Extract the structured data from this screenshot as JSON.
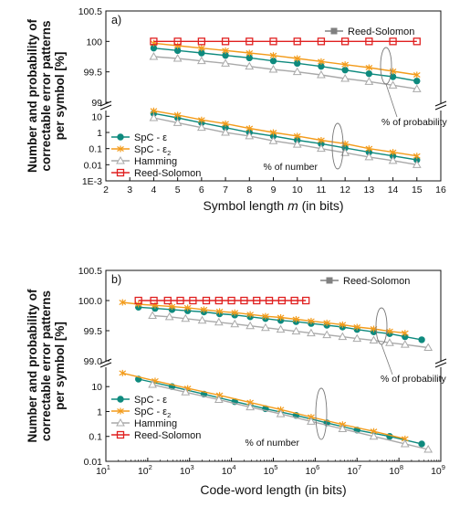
{
  "chart_data": [
    {
      "type": "line",
      "panel_label": "a)",
      "xlabel_main": "Symbol length ",
      "xlabel_var": "m",
      "xlabel_unit": " (in bits)",
      "ylabel_line1": "Number and probability of",
      "ylabel_line2": "correctable error patterns",
      "ylabel_line3": "per symbol [%]",
      "x_ticks": [
        "2",
        "3",
        "4",
        "5",
        "6",
        "7",
        "8",
        "9",
        "10",
        "11",
        "12",
        "13",
        "14",
        "15",
        "16"
      ],
      "x_range": [
        2,
        16
      ],
      "top_y_ticks": [
        "99",
        "99.5",
        "100",
        "100.5"
      ],
      "top_y_range": [
        99,
        100.5
      ],
      "bottom_y_ticks": [
        "1E-3",
        "0.01",
        "0.1",
        "1",
        "10"
      ],
      "bottom_y_range_log": [
        0.001,
        20
      ],
      "annotations": {
        "probability": "% of probability",
        "number": "% of number"
      },
      "legend_top": [
        {
          "name": "Reed-Solomon",
          "color": "#808080",
          "marker": "square-filled"
        }
      ],
      "legend_bottom": [
        {
          "name": "SpC - ε",
          "color": "#0e8a7e",
          "marker": "circle"
        },
        {
          "name": "SpC - ε",
          "sub": "2",
          "color": "#f39c1c",
          "marker": "x"
        },
        {
          "name": "Hamming",
          "color": "#a9a9a9",
          "marker": "triangle"
        },
        {
          "name": "Reed-Solomon",
          "color": "#e02020",
          "marker": "square"
        }
      ],
      "x": [
        4,
        5,
        6,
        7,
        8,
        9,
        10,
        11,
        12,
        13,
        14,
        15
      ],
      "series_probability": [
        {
          "name": "SpC - ε",
          "color": "#0e8a7e",
          "marker": "circle",
          "values": [
            99.89,
            99.85,
            99.81,
            99.77,
            99.73,
            99.68,
            99.64,
            99.59,
            99.53,
            99.47,
            99.42,
            99.35
          ]
        },
        {
          "name": "SpC - ε2",
          "color": "#f39c1c",
          "marker": "x",
          "values": [
            99.97,
            99.93,
            99.89,
            99.85,
            99.81,
            99.77,
            99.72,
            99.67,
            99.62,
            99.57,
            99.51,
            99.45
          ]
        },
        {
          "name": "Hamming",
          "color": "#a9a9a9",
          "marker": "triangle",
          "values": [
            99.75,
            99.72,
            99.68,
            99.64,
            99.59,
            99.54,
            99.5,
            99.45,
            99.39,
            99.34,
            99.28,
            99.22
          ]
        },
        {
          "name": "Reed-Solomon",
          "color": "#e02020",
          "marker": "square",
          "values": [
            100,
            100,
            100,
            100,
            100,
            100,
            100,
            100,
            100,
            100,
            100,
            100
          ]
        }
      ],
      "series_number": [
        {
          "name": "SpC - ε",
          "color": "#0e8a7e",
          "marker": "circle",
          "values": [
            15,
            8,
            4,
            2,
            1,
            0.6,
            0.33,
            0.2,
            0.11,
            0.06,
            0.035,
            0.02
          ]
        },
        {
          "name": "SpC - ε2",
          "color": "#f39c1c",
          "marker": "x",
          "values": [
            22,
            12,
            6,
            3.5,
            1.8,
            1,
            0.6,
            0.33,
            0.2,
            0.1,
            0.06,
            0.035
          ]
        },
        {
          "name": "Hamming",
          "color": "#a9a9a9",
          "marker": "triangle",
          "values": [
            8,
            4,
            2,
            1,
            0.6,
            0.3,
            0.18,
            0.1,
            0.055,
            0.03,
            0.018,
            0.01
          ]
        }
      ]
    },
    {
      "type": "line",
      "panel_label": "b)",
      "xlabel": "Code-word length (in bits)",
      "ylabel_line1": "Number and probability of",
      "ylabel_line2": "correctable error patterns",
      "ylabel_line3": "per symbol [%]",
      "x_ticks": [
        "10^1",
        "10^2",
        "10^3",
        "10^4",
        "10^5",
        "10^6",
        "10^7",
        "10^8",
        "10^9"
      ],
      "x_range_log": [
        10,
        1000000000
      ],
      "top_y_ticks": [
        "99.0",
        "99.5",
        "100.0",
        "100.5"
      ],
      "top_y_range": [
        99,
        100.5
      ],
      "bottom_y_ticks": [
        "0.01",
        "0.1",
        "1",
        "10"
      ],
      "bottom_y_range_log": [
        0.01,
        60
      ],
      "annotations": {
        "probability": "% of probability",
        "number": "% of number"
      },
      "legend_top": [
        {
          "name": "Reed-Solomon",
          "color": "#808080",
          "marker": "square-filled"
        }
      ],
      "legend_bottom": [
        {
          "name": "SpC - ε",
          "color": "#0e8a7e",
          "marker": "circle"
        },
        {
          "name": "SpC - ε",
          "sub": "2",
          "color": "#f39c1c",
          "marker": "x"
        },
        {
          "name": "Hamming",
          "color": "#a9a9a9",
          "marker": "triangle"
        },
        {
          "name": "Reed-Solomon",
          "color": "#e02020",
          "marker": "square"
        }
      ],
      "series_probability": [
        {
          "name": "SpC - ε",
          "color": "#0e8a7e",
          "marker": "circle",
          "x": [
            60,
            150,
            380,
            900,
            2200,
            5200,
            12000,
            28000,
            65000,
            150000,
            350000,
            800000,
            1900000,
            4500000,
            10000000,
            25000000,
            60000000,
            140000000,
            350000000
          ],
          "values": [
            99.89,
            99.87,
            99.85,
            99.83,
            99.81,
            99.78,
            99.76,
            99.73,
            99.7,
            99.67,
            99.65,
            99.62,
            99.59,
            99.56,
            99.52,
            99.48,
            99.45,
            99.4,
            99.35
          ]
        },
        {
          "name": "SpC - ε2",
          "color": "#f39c1c",
          "marker": "x",
          "x": [
            25,
            60,
            150,
            380,
            900,
            2200,
            5200,
            12000,
            28000,
            65000,
            150000,
            350000,
            800000,
            1900000,
            4500000,
            10000000,
            25000000,
            60000000,
            140000000
          ],
          "values": [
            99.97,
            99.94,
            99.92,
            99.9,
            99.88,
            99.85,
            99.82,
            99.8,
            99.77,
            99.74,
            99.72,
            99.69,
            99.66,
            99.63,
            99.6,
            99.56,
            99.53,
            99.49,
            99.46
          ]
        },
        {
          "name": "Hamming",
          "color": "#a9a9a9",
          "marker": "triangle",
          "x": [
            130,
            330,
            800,
            2000,
            5000,
            12000,
            28000,
            65000,
            150000,
            350000,
            800000,
            1900000,
            4500000,
            10000000,
            25000000,
            60000000,
            140000000,
            500000000
          ],
          "values": [
            99.75,
            99.73,
            99.7,
            99.67,
            99.64,
            99.61,
            99.58,
            99.55,
            99.52,
            99.49,
            99.46,
            99.43,
            99.4,
            99.37,
            99.34,
            99.3,
            99.27,
            99.22
          ]
        },
        {
          "name": "Reed-Solomon",
          "color": "#e02020",
          "marker": "square",
          "x": [
            60,
            140,
            300,
            600,
            1200,
            2500,
            5000,
            10000,
            20000,
            40000,
            80000,
            160000,
            320000,
            600000
          ],
          "values": [
            100,
            100,
            100,
            100,
            100,
            100,
            100,
            100,
            100,
            100,
            100,
            100,
            100,
            100
          ]
        }
      ],
      "series_number": [
        {
          "name": "SpC - ε",
          "color": "#0e8a7e",
          "marker": "circle",
          "x": [
            60,
            380,
            2200,
            12000,
            65000,
            350000,
            1900000,
            10000000,
            60000000,
            350000000
          ],
          "values": [
            20,
            10,
            5,
            2.5,
            1.3,
            0.7,
            0.35,
            0.18,
            0.1,
            0.05
          ]
        },
        {
          "name": "SpC - ε2",
          "color": "#f39c1c",
          "marker": "x",
          "x": [
            25,
            150,
            900,
            5200,
            28000,
            150000,
            800000,
            4500000,
            25000000,
            140000000
          ],
          "values": [
            35,
            17,
            8.5,
            4.5,
            2.3,
            1.2,
            0.6,
            0.3,
            0.16,
            0.08
          ]
        },
        {
          "name": "Hamming",
          "color": "#a9a9a9",
          "marker": "triangle",
          "x": [
            130,
            800,
            5000,
            28000,
            150000,
            800000,
            4500000,
            25000000,
            140000000,
            500000000
          ],
          "values": [
            12,
            6,
            3,
            1.5,
            0.8,
            0.4,
            0.2,
            0.1,
            0.05,
            0.03
          ]
        }
      ]
    }
  ]
}
